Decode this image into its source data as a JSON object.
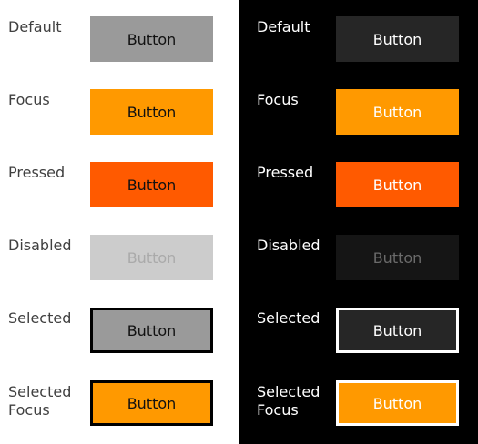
{
  "button_label": "Button",
  "states": {
    "default": "Default",
    "focus": "Focus",
    "pressed": "Pressed",
    "disabled": "Disabled",
    "selected": "Selected",
    "selected_focus": "Selected\nFocus"
  },
  "colors": {
    "light_default_bg": "#9a9a9a",
    "focus_bg": "#ff9900",
    "pressed_bg": "#ff5a00",
    "light_disabled_bg": "#cccccc",
    "dark_default_bg": "#262626",
    "dark_disabled_bg": "#151515"
  }
}
